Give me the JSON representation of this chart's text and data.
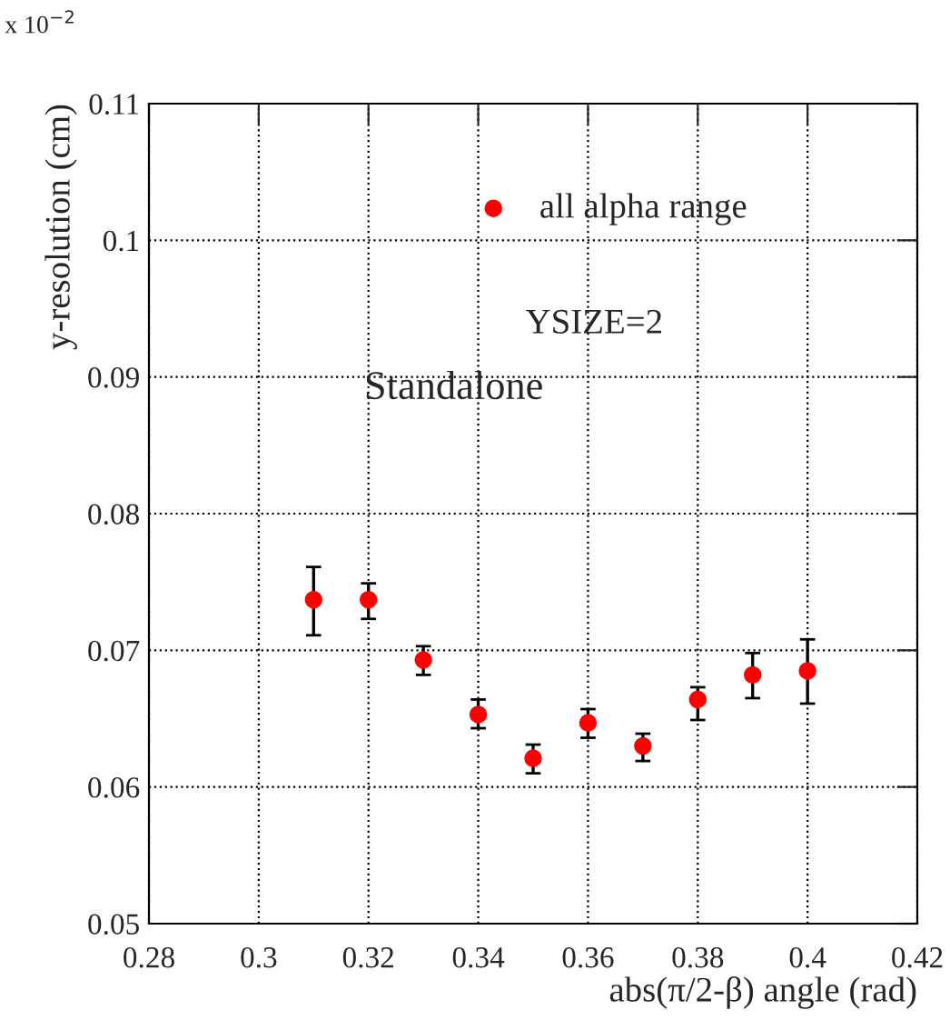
{
  "chart_data": {
    "type": "scatter",
    "xlabel": "abs(π/2-β) angle (rad)",
    "ylabel": "y-resolution (cm)",
    "x": [
      0.31,
      0.32,
      0.33,
      0.34,
      0.35,
      0.36,
      0.37,
      0.38,
      0.39,
      0.4
    ],
    "series": [
      {
        "name": "all alpha range",
        "color": "#ff0000",
        "values": [
          0.0737,
          0.0737,
          0.0693,
          0.0653,
          0.0621,
          0.0647,
          0.063,
          0.0664,
          0.0682,
          0.0685
        ],
        "errors": [
          [
            0.0711,
            0.0761
          ],
          [
            0.0723,
            0.0749
          ],
          [
            0.0682,
            0.0703
          ],
          [
            0.0643,
            0.0664
          ],
          [
            0.061,
            0.0631
          ],
          [
            0.0636,
            0.0657
          ],
          [
            0.0619,
            0.0639
          ],
          [
            0.0649,
            0.0673
          ],
          [
            0.0665,
            0.0698
          ],
          [
            0.0661,
            0.0708
          ]
        ]
      }
    ],
    "xlim": [
      0.28,
      0.42
    ],
    "xticks": [
      0.28,
      0.3,
      0.32,
      0.34,
      0.36,
      0.38,
      0.4,
      0.42
    ],
    "ylim": [
      0.05,
      0.11
    ],
    "yticks": [
      0.05,
      0.06,
      0.07,
      0.08,
      0.09,
      0.1,
      0.11
    ],
    "annotations": [
      "x 10$^{−2}$",
      "YSIZE=2",
      "Standalone"
    ],
    "grid": true,
    "legend": "top right",
    "marker": "circle"
  }
}
